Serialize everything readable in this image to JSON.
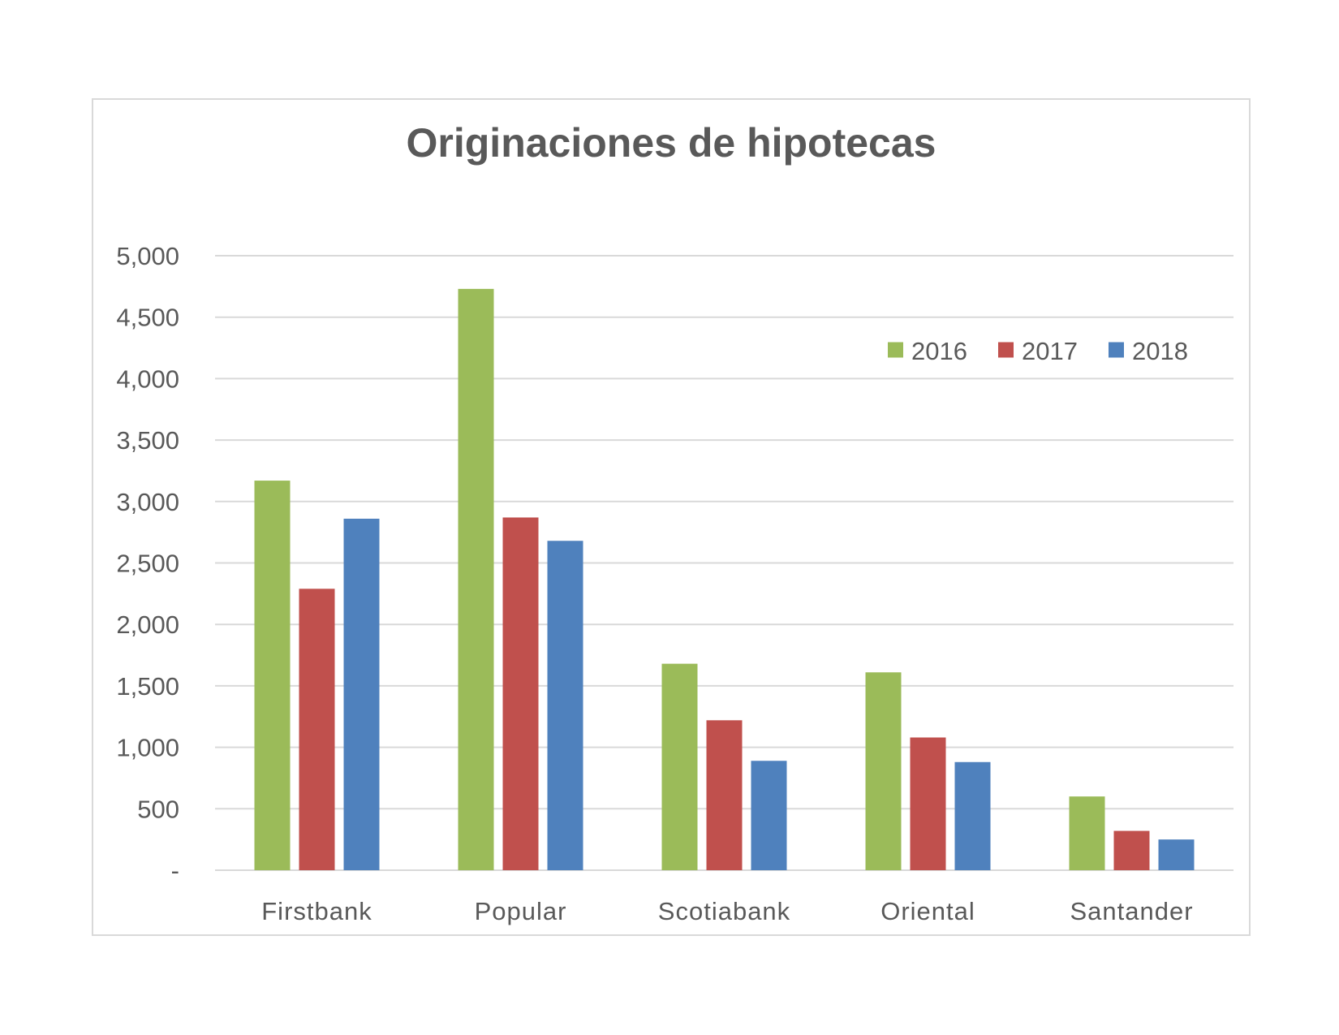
{
  "chart_data": {
    "type": "bar",
    "title": "Originaciones de hipotecas",
    "xlabel": "",
    "ylabel": "",
    "categories": [
      "Firstbank",
      "Popular",
      "Scotiabank",
      "Oriental",
      "Santander"
    ],
    "series": [
      {
        "name": "2016",
        "color": "#9bbb59",
        "values": [
          3170,
          4730,
          1680,
          1610,
          600
        ]
      },
      {
        "name": "2017",
        "color": "#c0504d",
        "values": [
          2290,
          2870,
          1220,
          1080,
          320
        ]
      },
      {
        "name": "2018",
        "color": "#4f81bd",
        "values": [
          2860,
          2680,
          890,
          880,
          250
        ]
      }
    ],
    "ylim": [
      0,
      5000
    ],
    "yticks": [
      0,
      500,
      1000,
      1500,
      2000,
      2500,
      3000,
      3500,
      4000,
      4500,
      5000
    ],
    "ytick_labels": [
      "-",
      "500",
      "1,000",
      "1,500",
      "2,000",
      "2,500",
      "3,000",
      "3,500",
      "4,000",
      "4,500",
      "5,000"
    ],
    "grid": true,
    "legend_position": "top-right"
  }
}
